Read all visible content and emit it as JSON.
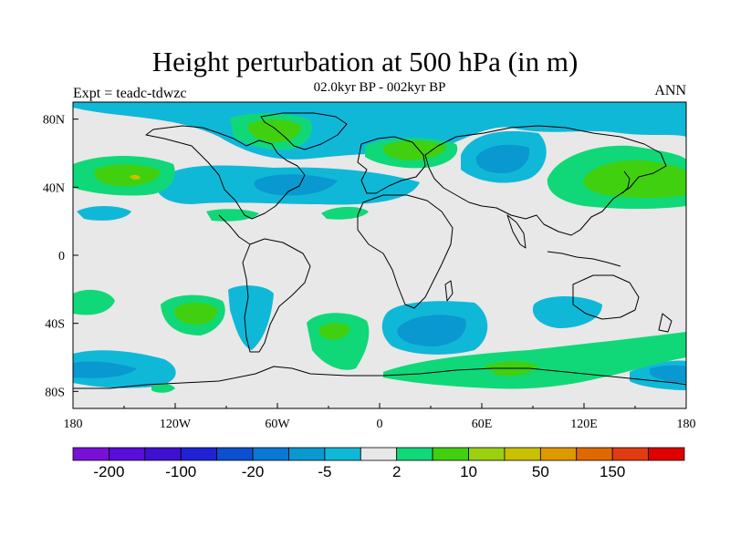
{
  "title": "Height perturbation at 500 hPa (in m)",
  "subtitle": "02.0kyr BP - 002kyr BP",
  "left_label": "Expt = teadc-tdwzc",
  "right_label": "ANN",
  "x_ticks": [
    "180",
    "120W",
    "60W",
    "0",
    "60E",
    "120E",
    "180"
  ],
  "y_ticks": [
    "80N",
    "40N",
    "0",
    "40S",
    "80S"
  ],
  "colorbar": {
    "colors": [
      "#7a10d8",
      "#5a0cd8",
      "#4010d0",
      "#1e22d4",
      "#0a50d0",
      "#0a78d4",
      "#0a98d0",
      "#10b8d8",
      "#e8e8e8",
      "#10d878",
      "#40d010",
      "#9ad010",
      "#c8c000",
      "#e09800",
      "#e06800",
      "#e03c10",
      "#e00000"
    ],
    "labels": [
      "-200",
      "-100",
      "-20",
      "-5",
      "2",
      "10",
      "50",
      "150"
    ]
  },
  "colors": {
    "background": "#e8e8e8",
    "neg_light": "#10b8d8",
    "neg_mid": "#0a98d0",
    "neg_dark": "#0a78d4",
    "pos_light": "#10d878",
    "pos_mid": "#40d010",
    "pos_dark": "#9ad010",
    "pos_max": "#c8c000"
  }
}
